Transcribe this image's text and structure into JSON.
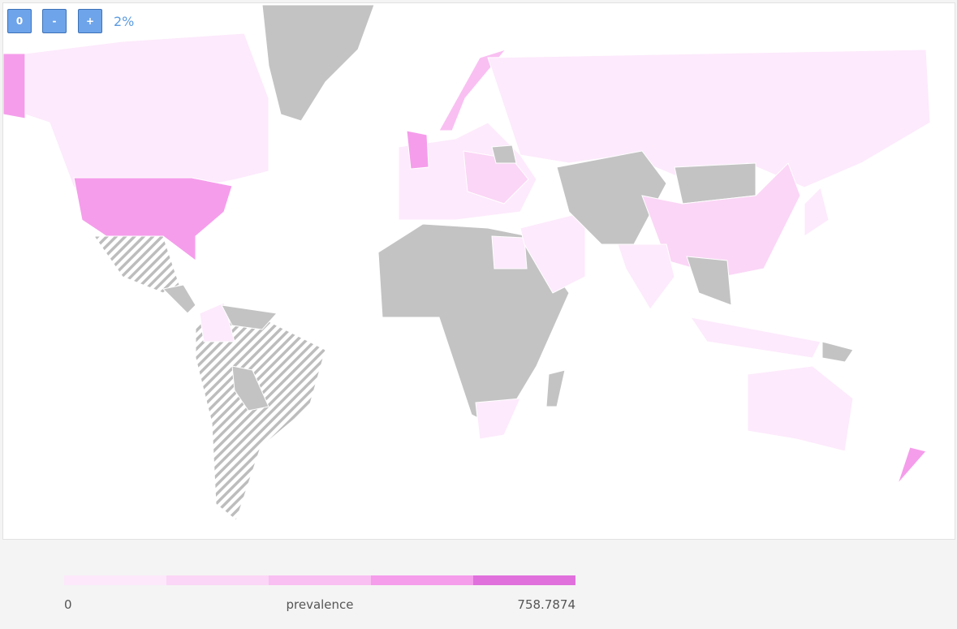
{
  "controls": {
    "buttons": [
      "0",
      "-",
      "+"
    ],
    "zoom": "2%"
  },
  "legend": {
    "min": 0,
    "label": "prevalence",
    "max": 758.7874,
    "colors": [
      "#fde8fb",
      "#fbd6f6",
      "#f9bff2",
      "#f59deb",
      "#e070dc"
    ]
  }
}
